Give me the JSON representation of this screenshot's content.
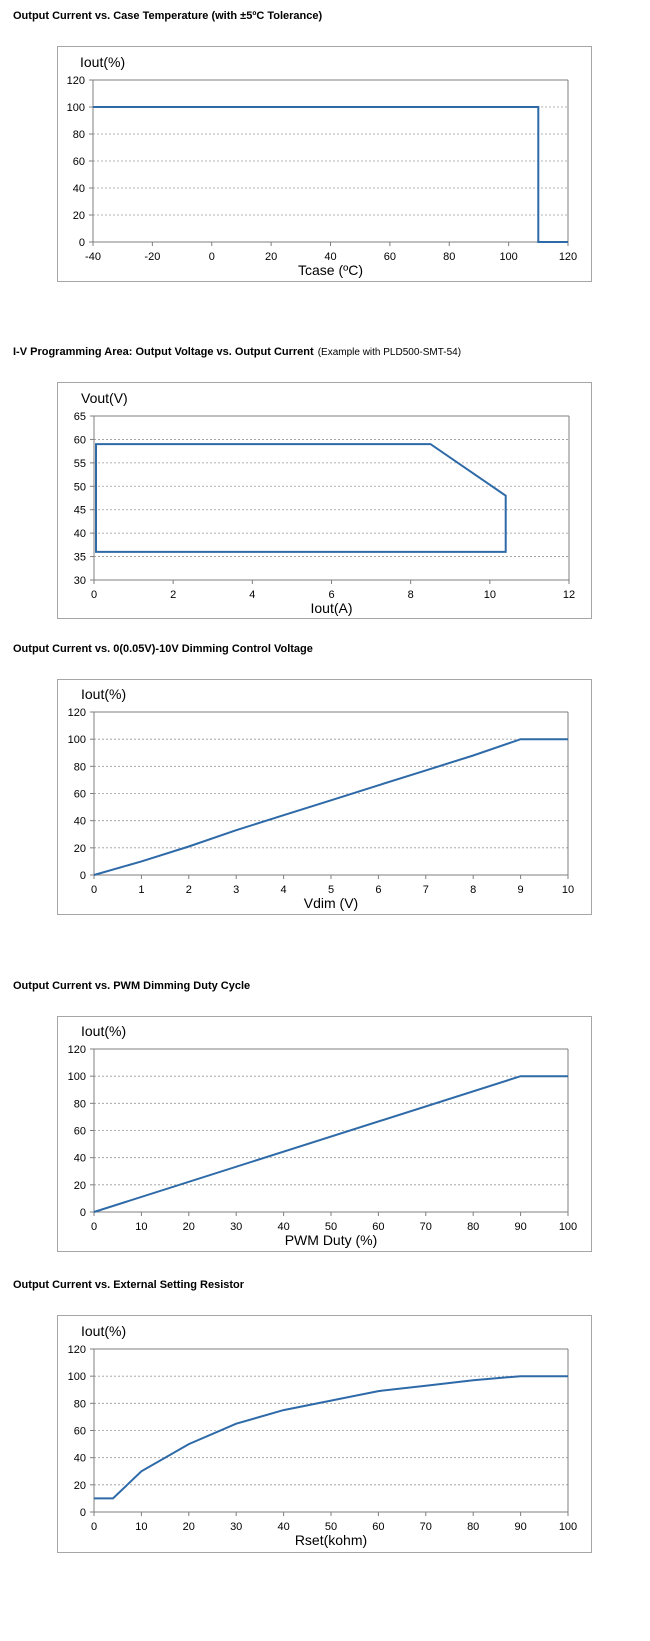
{
  "chart_data": [
    {
      "id": "c1",
      "type": "line",
      "title": "Output Current vs. Case Temperature (with ±5ºC Tolerance)",
      "subtitle": "",
      "ylabel": "Iout(%)",
      "xlabel": "Tcase (ºC)",
      "xlim": [
        -40,
        120
      ],
      "ylim": [
        0,
        120
      ],
      "xticks": [
        -40,
        -20,
        0,
        20,
        40,
        60,
        80,
        100,
        120
      ],
      "yticks": [
        0,
        20,
        40,
        60,
        80,
        100,
        120
      ],
      "grid": "horizontal-dashed",
      "closed": false,
      "series": [
        {
          "x": [
            -40,
            110,
            110,
            120
          ],
          "y": [
            100,
            100,
            0,
            0
          ]
        }
      ]
    },
    {
      "id": "c2",
      "type": "line",
      "title": "I-V Programming Area: Output Voltage vs. Output Current",
      "subtitle": "(Example with PLD500-SMT-54)",
      "ylabel": "Vout(V)",
      "xlabel": "Iout(A)",
      "xlim": [
        0,
        12
      ],
      "ylim": [
        30,
        65
      ],
      "xticks": [
        0,
        2,
        4,
        6,
        8,
        10,
        12
      ],
      "yticks": [
        30,
        35,
        40,
        45,
        50,
        55,
        60,
        65
      ],
      "grid": "horizontal-dashed",
      "closed": true,
      "series": [
        {
          "x": [
            0.05,
            8.5,
            10.4,
            10.4,
            0.05
          ],
          "y": [
            59,
            59,
            48,
            36,
            36
          ]
        }
      ]
    },
    {
      "id": "c3",
      "type": "line",
      "title": "Output Current vs. 0(0.05V)-10V Dimming Control Voltage",
      "subtitle": "",
      "ylabel": "Iout(%)",
      "xlabel": "Vdim (V)",
      "xlim": [
        0,
        10
      ],
      "ylim": [
        0,
        120
      ],
      "xticks": [
        0,
        1,
        2,
        3,
        4,
        5,
        6,
        7,
        8,
        9,
        10
      ],
      "yticks": [
        0,
        20,
        40,
        60,
        80,
        100,
        120
      ],
      "grid": "horizontal-dashed",
      "closed": false,
      "series": [
        {
          "x": [
            0,
            1,
            2,
            3,
            4,
            5,
            6,
            7,
            8,
            9,
            10
          ],
          "y": [
            0,
            10,
            21,
            33,
            44,
            55,
            66,
            77,
            88,
            100,
            100
          ]
        }
      ]
    },
    {
      "id": "c4",
      "type": "line",
      "title": "Output Current vs. PWM Dimming Duty Cycle",
      "subtitle": "",
      "ylabel": "Iout(%)",
      "xlabel": "PWM Duty (%)",
      "xlim": [
        0,
        100
      ],
      "ylim": [
        0,
        120
      ],
      "xticks": [
        0,
        10,
        20,
        30,
        40,
        50,
        60,
        70,
        80,
        90,
        100
      ],
      "yticks": [
        0,
        20,
        40,
        60,
        80,
        100,
        120
      ],
      "grid": "horizontal-dashed",
      "closed": false,
      "series": [
        {
          "x": [
            0,
            90,
            100
          ],
          "y": [
            0,
            100,
            100
          ]
        }
      ]
    },
    {
      "id": "c5",
      "type": "line",
      "title": "Output Current vs. External Setting Resistor",
      "subtitle": "",
      "ylabel": "Iout(%)",
      "xlabel": "Rset(kohm)",
      "xlim": [
        0,
        100
      ],
      "ylim": [
        0,
        120
      ],
      "xticks": [
        0,
        10,
        20,
        30,
        40,
        50,
        60,
        70,
        80,
        90,
        100
      ],
      "yticks": [
        0,
        20,
        40,
        60,
        80,
        100,
        120
      ],
      "grid": "horizontal-dashed",
      "closed": false,
      "series": [
        {
          "x": [
            0,
            4,
            10,
            20,
            30,
            40,
            50,
            60,
            70,
            80,
            90,
            100
          ],
          "y": [
            10,
            10,
            30,
            50,
            65,
            75,
            82,
            89,
            93,
            97,
            100,
            100
          ]
        }
      ]
    }
  ],
  "colors": {
    "line": "#2e6aa8",
    "grid": "#9a9a9a",
    "axis": "#7f7f7f",
    "frame": "#a6a6a6"
  }
}
